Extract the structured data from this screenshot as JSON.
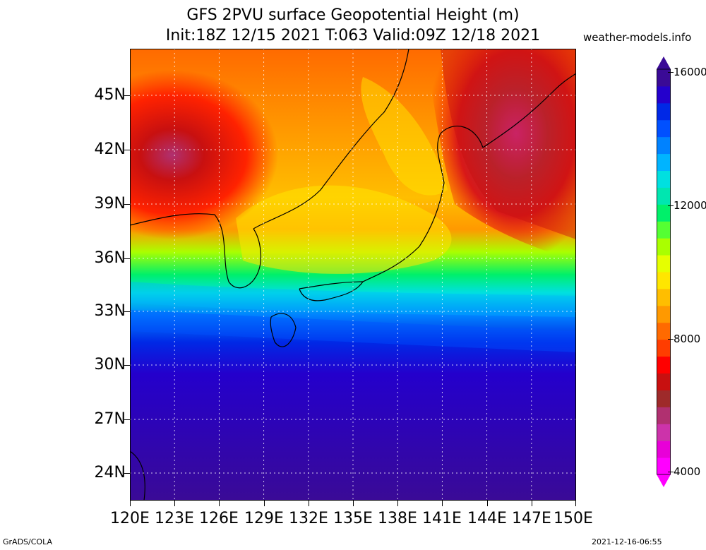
{
  "title_line1": "GFS 2PVU surface Geopotential Height (m)",
  "title_line2": "Init:18Z 12/15 2021 T:063 Valid:09Z 12/18 2021",
  "site": "weather-models.info",
  "lat_labels": [
    "45N",
    "42N",
    "39N",
    "36N",
    "33N",
    "30N",
    "27N",
    "24N"
  ],
  "lon_labels": [
    "120E",
    "123E",
    "126E",
    "129E",
    "132E",
    "135E",
    "138E",
    "141E",
    "144E",
    "147E",
    "150E"
  ],
  "colorbar": {
    "labels": [
      "16000",
      "12000",
      "8000",
      "4000"
    ],
    "colors": [
      "#ff00ff",
      "#e800d8",
      "#cc33aa",
      "#b03070",
      "#9e2a2a",
      "#c81010",
      "#ff0000",
      "#ff3d00",
      "#ff6a00",
      "#ff9900",
      "#ffbe00",
      "#ffe600",
      "#e6ff00",
      "#aaff00",
      "#55ff33",
      "#00f06a",
      "#00e6b0",
      "#00e0e0",
      "#00b4ff",
      "#0082ff",
      "#0050ff",
      "#0028e6",
      "#2400cc",
      "#3a0a96"
    ]
  },
  "footer_left": "GrADS/COLA",
  "footer_right": "2021-12-16-06:55"
}
